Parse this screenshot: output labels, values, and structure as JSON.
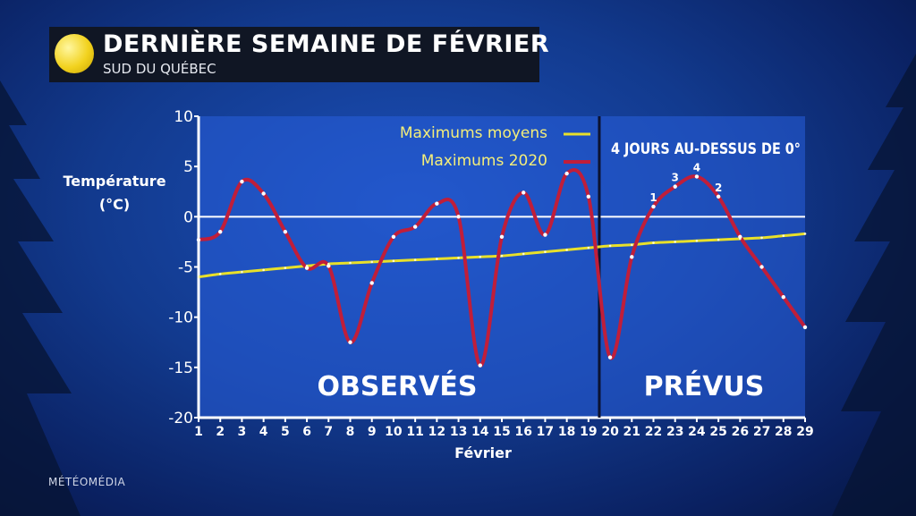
{
  "header": {
    "title": "DERNIÈRE SEMAINE DE FÉVRIER",
    "subtitle": "SUD DU QUÉBEC"
  },
  "brand": "MÉTÉOMÉDIA",
  "colors": {
    "series_2020": "#c01e3a",
    "series_avg": "#e8e02a",
    "zero_line": "#ffffff"
  },
  "chart_data": {
    "type": "line",
    "xlabel": "Février",
    "ylabel": [
      "Température",
      "(°C)"
    ],
    "xlim": [
      1,
      29
    ],
    "ylim": [
      -20,
      10
    ],
    "yticks": [
      10,
      5,
      0,
      -5,
      -10,
      -15,
      -20
    ],
    "x": [
      1,
      2,
      3,
      4,
      5,
      6,
      7,
      8,
      9,
      10,
      11,
      12,
      13,
      14,
      15,
      16,
      17,
      18,
      19,
      20,
      21,
      22,
      23,
      24,
      25,
      26,
      27,
      28,
      29
    ],
    "series": [
      {
        "name": "Maximums 2020",
        "values": [
          -2.3,
          -1.5,
          3.5,
          2.3,
          -1.5,
          -5.1,
          -4.9,
          -12.5,
          -6.6,
          -2,
          -1,
          1.3,
          0,
          -14.8,
          -2,
          2.4,
          -1.8,
          4.3,
          2,
          -14,
          -4,
          1,
          3,
          4,
          2,
          -2,
          -5,
          -8,
          -11
        ]
      },
      {
        "name": "Maximums moyens",
        "values": [
          -6,
          -5.7,
          -5.5,
          -5.3,
          -5.1,
          -4.9,
          -4.7,
          -4.6,
          -4.5,
          -4.4,
          -4.3,
          -4.2,
          -4.1,
          -4,
          -3.9,
          -3.7,
          -3.5,
          -3.3,
          -3.1,
          -2.9,
          -2.8,
          -2.6,
          -2.5,
          -2.4,
          -2.3,
          -2.2,
          -2.1,
          -1.9,
          -1.7
        ]
      }
    ],
    "divider_x": 19.5,
    "sections": [
      {
        "label": "OBSERVÉS"
      },
      {
        "label": "PRÉVUS"
      }
    ],
    "annotation": "4 JOURS AU-DESSUS DE 0°",
    "day_labels": [
      {
        "x": 22,
        "label": "1"
      },
      {
        "x": 23,
        "label": "3"
      },
      {
        "x": 24,
        "label": "4"
      },
      {
        "x": 25,
        "label": "2"
      }
    ]
  }
}
